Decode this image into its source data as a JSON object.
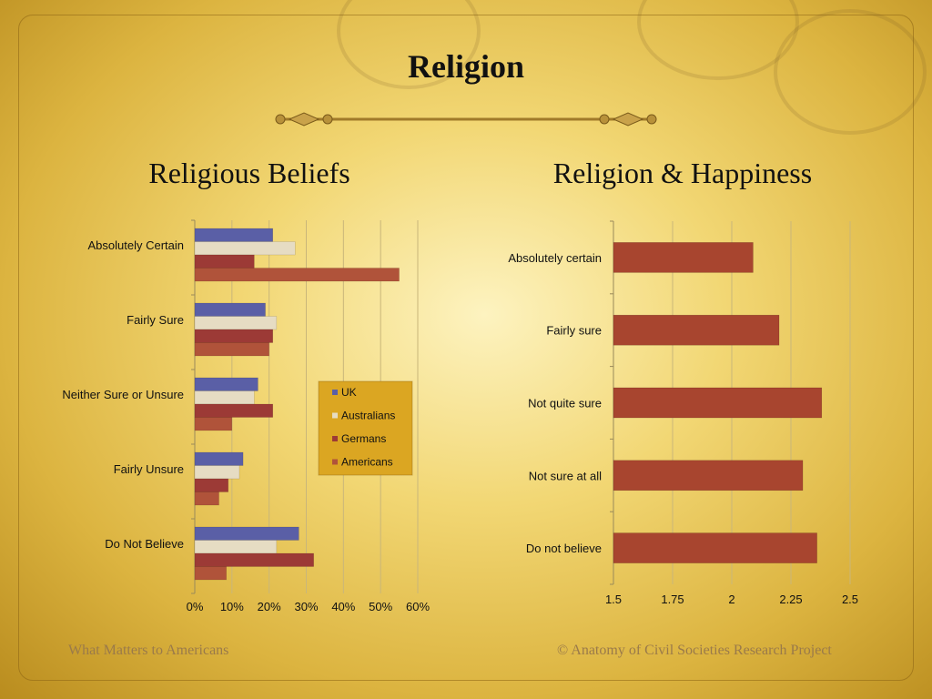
{
  "page": {
    "title": "Religion",
    "footer_left": "What Matters to Americans",
    "footer_right": "© Anatomy of Civil Societies Research Project"
  },
  "colors": {
    "uk": "#5a5fa6",
    "australians": "#e6dcc3",
    "germans": "#9c3a36",
    "americans": "#b0533a",
    "happiness": "#a8452f",
    "legend_bg": "#dba622"
  },
  "chart_data": [
    {
      "type": "bar",
      "orientation": "horizontal",
      "title": "Religious Beliefs",
      "categories": [
        "Absolutely Certain",
        "Fairly Sure",
        "Neither Sure or Unsure",
        "Fairly Unsure",
        "Do Not Believe"
      ],
      "series": [
        {
          "name": "UK",
          "values": [
            21,
            19,
            17,
            13,
            28
          ]
        },
        {
          "name": "Australians",
          "values": [
            27,
            22,
            16,
            12,
            22
          ]
        },
        {
          "name": "Germans",
          "values": [
            16,
            21,
            21,
            9,
            32
          ]
        },
        {
          "name": "Americans",
          "values": [
            55,
            20,
            10,
            6.5,
            8.5
          ]
        }
      ],
      "xlim": [
        0,
        60
      ],
      "xticks": [
        "0%",
        "10%",
        "20%",
        "30%",
        "40%",
        "50%",
        "60%"
      ],
      "grid": true,
      "legend_position": "right-center"
    },
    {
      "type": "bar",
      "orientation": "horizontal",
      "title": "Religion & Happiness",
      "categories": [
        "Absolutely certain",
        "Fairly sure",
        "Not quite sure",
        "Not sure at all",
        "Do not believe"
      ],
      "values": [
        2.09,
        2.2,
        2.38,
        2.3,
        2.36
      ],
      "xlim": [
        1.5,
        2.5
      ],
      "xticks": [
        "1.5",
        "1.75",
        "2",
        "2.25",
        "2.5"
      ],
      "grid": true
    }
  ]
}
